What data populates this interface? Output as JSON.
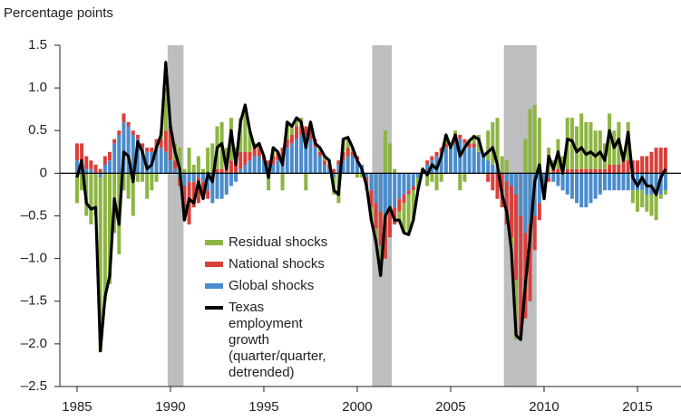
{
  "chart_data": {
    "type": "bar",
    "stacked": true,
    "y_label": "Percentage points",
    "xlim": [
      1984.08,
      2017.33
    ],
    "ylim": [
      -2.5,
      1.5
    ],
    "xticks": [
      1985,
      1990,
      1995,
      2000,
      2005,
      2010,
      2015
    ],
    "yticks": [
      1.5,
      {
        "value": 1,
        "label": "1.0"
      },
      0.5,
      0,
      {
        "value": -0.5,
        "label": "–0.5"
      },
      {
        "value": -1,
        "label": "–1.0"
      },
      {
        "value": -1.5,
        "label": "–1.5"
      },
      {
        "value": -2,
        "label": "–2.0"
      },
      {
        "value": -2.5,
        "label": "–2.5"
      }
    ],
    "shaded_periods": [
      [
        1989.85,
        1990.7
      ],
      [
        2000.8,
        2001.85
      ],
      [
        2007.85,
        2009.6
      ]
    ],
    "shade_color": "#bcbec0",
    "x": [
      1985,
      1985.25,
      1985.5,
      1985.75,
      1986,
      1986.25,
      1986.5,
      1986.75,
      1987,
      1987.25,
      1987.5,
      1987.75,
      1988,
      1988.25,
      1988.5,
      1988.75,
      1989,
      1989.25,
      1989.5,
      1989.75,
      1990,
      1990.25,
      1990.5,
      1990.75,
      1991,
      1991.25,
      1991.5,
      1991.75,
      1992,
      1992.25,
      1992.5,
      1992.75,
      1993,
      1993.25,
      1993.5,
      1993.75,
      1994,
      1994.25,
      1994.5,
      1994.75,
      1995,
      1995.25,
      1995.5,
      1995.75,
      1996,
      1996.25,
      1996.5,
      1996.75,
      1997,
      1997.25,
      1997.5,
      1997.75,
      1998,
      1998.25,
      1998.5,
      1998.75,
      1999,
      1999.25,
      1999.5,
      1999.75,
      2000,
      2000.25,
      2000.5,
      2000.75,
      2001,
      2001.25,
      2001.5,
      2001.75,
      2002,
      2002.25,
      2002.5,
      2002.75,
      2003,
      2003.25,
      2003.5,
      2003.75,
      2004,
      2004.25,
      2004.5,
      2004.75,
      2005,
      2005.25,
      2005.5,
      2005.75,
      2006,
      2006.25,
      2006.5,
      2006.75,
      2007,
      2007.25,
      2007.5,
      2007.75,
      2008,
      2008.25,
      2008.5,
      2008.75,
      2009,
      2009.25,
      2009.5,
      2009.75,
      2010,
      2010.25,
      2010.5,
      2010.75,
      2011,
      2011.25,
      2011.5,
      2011.75,
      2012,
      2012.25,
      2012.5,
      2012.75,
      2013,
      2013.25,
      2013.5,
      2013.75,
      2014,
      2014.25,
      2014.5,
      2014.75,
      2015,
      2015.25,
      2015.5,
      2015.75,
      2016,
      2016.25,
      2016.5
    ],
    "series": [
      {
        "name": "Residual shocks",
        "color": "#8db542",
        "type": "bar",
        "values": [
          -0.35,
          -0.2,
          -0.5,
          -0.6,
          -0.5,
          -2.05,
          -1.5,
          -1.3,
          -0.7,
          -0.95,
          -0.2,
          -0.3,
          -0.5,
          -0.1,
          -0.1,
          -0.3,
          -0.2,
          -0.1,
          0.1,
          0.5,
          0,
          0.2,
          0.3,
          0.05,
          0.3,
          0.1,
          0.2,
          0.05,
          0.3,
          0.35,
          0.5,
          0.55,
          0.2,
          0.5,
          0.1,
          0.4,
          0.5,
          0.25,
          0.05,
          0.05,
          0,
          -0.2,
          0.1,
          0,
          -0.2,
          0.2,
          0.1,
          0.1,
          0.1,
          -0.2,
          0.1,
          0,
          0.05,
          0.05,
          0.05,
          -0.2,
          -0.35,
          0.15,
          0.1,
          0.05,
          -0.05,
          -0.05,
          -0.05,
          -0.15,
          -0.15,
          -0.35,
          0.5,
          0.35,
          0.05,
          -0.1,
          -0.35,
          -0.45,
          -0.35,
          -0.15,
          0,
          -0.15,
          -0.1,
          -0.2,
          -0.1,
          0.1,
          0,
          0.1,
          -0.2,
          -0.1,
          0.03,
          0.1,
          0.2,
          0,
          0.35,
          0.5,
          0.6,
          0.2,
          0.15,
          -0.1,
          -0.7,
          -0.05,
          0.4,
          0.75,
          0.8,
          0.65,
          -0.05,
          0.3,
          0.1,
          0.35,
          0.15,
          0.6,
          0.6,
          0.5,
          0.65,
          0.55,
          0.55,
          0.45,
          0.45,
          0.3,
          0.6,
          0.4,
          0.5,
          0.1,
          0.45,
          -0.15,
          -0.25,
          -0.2,
          -0.2,
          -0.25,
          -0.3,
          -0.05,
          -0.05
        ]
      },
      {
        "name": "National shocks",
        "color": "#d9403a",
        "type": "bar",
        "values": [
          0.2,
          0.25,
          0.15,
          0.1,
          0.1,
          0.05,
          0.1,
          0.1,
          0.05,
          0.05,
          0.1,
          0.05,
          0.05,
          0.05,
          0.05,
          0.05,
          0.05,
          0.1,
          0.1,
          0.25,
          0.4,
          0.1,
          -0.1,
          -0.4,
          -0.5,
          -0.3,
          -0.3,
          -0.2,
          -0.1,
          0,
          0.05,
          0.05,
          0.1,
          0.15,
          0.2,
          0.2,
          0.15,
          0.1,
          0.1,
          0.1,
          0.05,
          0.05,
          0.1,
          0.1,
          0.1,
          0.1,
          0.1,
          0.15,
          0.1,
          0.1,
          0.1,
          0.1,
          0.05,
          0.05,
          0.05,
          0.05,
          0.05,
          0.1,
          0.1,
          0.05,
          0.05,
          0,
          -0.1,
          -0.2,
          -0.3,
          -0.4,
          -0.5,
          -0.3,
          -0.2,
          -0.15,
          -0.1,
          -0.05,
          -0.05,
          0,
          0,
          0.05,
          0.05,
          0.05,
          0.05,
          0.05,
          0.05,
          0.05,
          0.05,
          0.05,
          0.05,
          0.05,
          0,
          0,
          -0.1,
          -0.2,
          -0.3,
          -0.4,
          -0.5,
          -0.6,
          -1,
          -1.4,
          -1,
          -0.9,
          -0.4,
          -0.2,
          -0.1,
          -0.05,
          0.05,
          0.05,
          0.05,
          0.05,
          0.05,
          0.05,
          0.05,
          0.05,
          0.05,
          0.05,
          0.05,
          0.05,
          0.1,
          0.1,
          0.1,
          0.15,
          0.15,
          0.15,
          0.15,
          0.2,
          0.2,
          0.25,
          0.3,
          0.3,
          0.3
        ]
      },
      {
        "name": "Global shocks",
        "color": "#4a8ccc",
        "type": "bar",
        "values": [
          0.15,
          0.1,
          0.05,
          0.05,
          0,
          -0.05,
          0.1,
          0.15,
          0.35,
          0.45,
          0.6,
          0.55,
          0.45,
          0.4,
          0.3,
          0.25,
          0.25,
          0.3,
          0.3,
          0.25,
          0.15,
          0.05,
          -0.05,
          -0.15,
          -0.1,
          -0.1,
          -0.05,
          -0.1,
          -0.2,
          -0.35,
          -0.3,
          -0.3,
          -0.25,
          -0.15,
          -0.1,
          0.05,
          0.1,
          0.15,
          0.2,
          0.2,
          0.15,
          0.1,
          0.1,
          0.15,
          0.2,
          0.3,
          0.35,
          0.4,
          0.45,
          0.45,
          0.4,
          0.3,
          0.2,
          0.1,
          0.05,
          -0.05,
          0.1,
          0.15,
          0.2,
          0.2,
          0.15,
          0.1,
          -0.05,
          -0.2,
          -0.35,
          -0.45,
          -0.5,
          -0.45,
          -0.4,
          -0.3,
          -0.25,
          -0.2,
          -0.15,
          -0.05,
          0.05,
          0.1,
          0.15,
          0.2,
          0.25,
          0.3,
          0.3,
          0.35,
          0.4,
          0.35,
          0.3,
          0.3,
          0.25,
          0.2,
          0.15,
          0.1,
          0.05,
          0,
          -0.1,
          -0.15,
          -0.25,
          -0.5,
          -0.7,
          -0.6,
          -0.5,
          -0.35,
          -0.15,
          -0.05,
          -0.1,
          -0.15,
          -0.2,
          -0.25,
          -0.3,
          -0.35,
          -0.4,
          -0.4,
          -0.35,
          -0.3,
          -0.25,
          -0.2,
          -0.2,
          -0.2,
          -0.2,
          -0.2,
          -0.2,
          -0.2,
          -0.2,
          -0.2,
          -0.25,
          -0.25,
          -0.25,
          -0.25,
          -0.2
        ]
      },
      {
        "name": "Texas employment growth (quarter/quarter, detrended)",
        "color": "#000000",
        "type": "line",
        "values": [
          -0.05,
          0.15,
          -0.35,
          -0.42,
          -0.4,
          -2.08,
          -1.45,
          -1.2,
          -0.3,
          -0.6,
          0.25,
          0.2,
          -0.1,
          0.37,
          0.25,
          0.05,
          0.1,
          0.3,
          0.45,
          1.3,
          0.55,
          0.25,
          0.05,
          -0.55,
          -0.3,
          -0.35,
          -0.1,
          -0.3,
          0,
          -0.1,
          0.3,
          0.35,
          0.05,
          0.5,
          0.1,
          0.6,
          0.8,
          0.5,
          0.3,
          0.35,
          0.2,
          -0.05,
          0.3,
          0.25,
          0.1,
          0.6,
          0.55,
          0.65,
          0.6,
          0.3,
          0.6,
          0.35,
          0.3,
          0.2,
          0.15,
          -0.2,
          -0.25,
          0.4,
          0.42,
          0.3,
          0.15,
          0.05,
          -0.15,
          -0.55,
          -0.8,
          -1.2,
          -0.5,
          -0.4,
          -0.55,
          -0.55,
          -0.7,
          -0.72,
          -0.55,
          -0.2,
          0.05,
          -0.02,
          0.1,
          0.05,
          0.2,
          0.45,
          0.3,
          0.45,
          0.2,
          0.3,
          0.38,
          0.43,
          0.4,
          0.2,
          0.25,
          0.3,
          0.1,
          -0.25,
          -0.45,
          -0.9,
          -1.9,
          -1.95,
          -1.3,
          -0.75,
          -0.1,
          0.1,
          -0.3,
          0.2,
          0.05,
          0.25,
          0,
          0.4,
          0.38,
          0.25,
          0.3,
          0.22,
          0.25,
          0.2,
          0.25,
          0.15,
          0.5,
          0.3,
          0.4,
          0.15,
          0.48,
          -0.05,
          -0.15,
          -0.05,
          -0.15,
          -0.15,
          -0.25,
          -0.05,
          0.05
        ]
      }
    ]
  }
}
